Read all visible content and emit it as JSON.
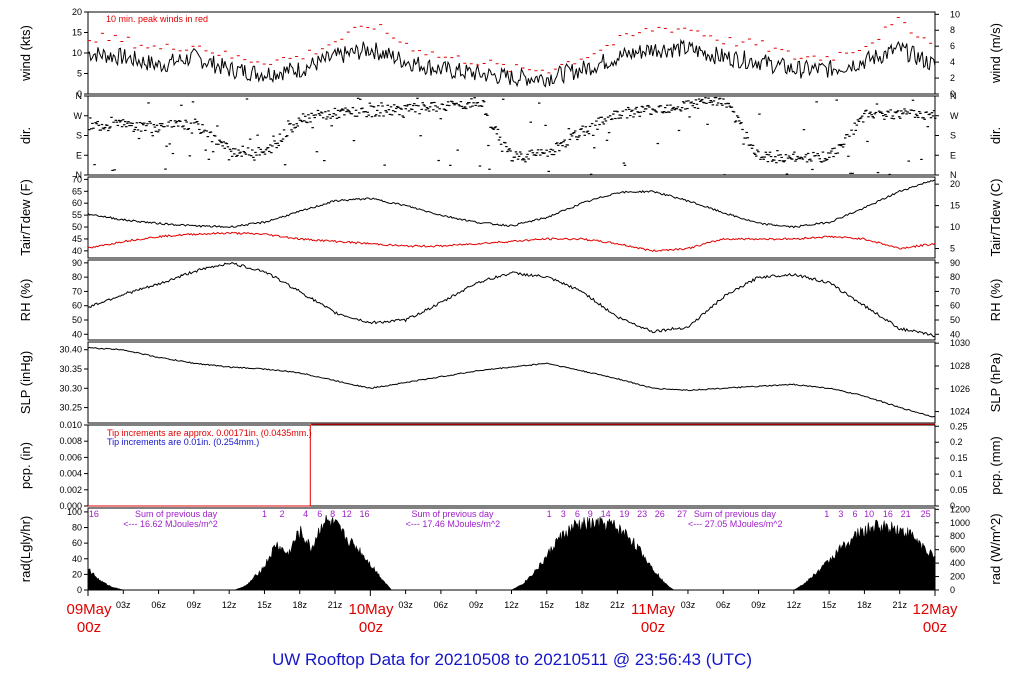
{
  "page_title": "UW Rooftop Data for 20210508  to  20210511 @ 23:56:43  (UTC)",
  "time_axis": {
    "range_hours": [
      0,
      72
    ],
    "day_labels": [
      {
        "date": "09May",
        "time": "00z",
        "hour": 0
      },
      {
        "date": "10May",
        "time": "00z",
        "hour": 24
      },
      {
        "date": "11May",
        "time": "00z",
        "hour": 48
      },
      {
        "date": "12May",
        "time": "00z",
        "hour": 72
      }
    ],
    "hour_ticks": [
      {
        "label": "03z",
        "hour": 3
      },
      {
        "label": "06z",
        "hour": 6
      },
      {
        "label": "09z",
        "hour": 9
      },
      {
        "label": "12z",
        "hour": 12
      },
      {
        "label": "15z",
        "hour": 15
      },
      {
        "label": "18z",
        "hour": 18
      },
      {
        "label": "21z",
        "hour": 21
      },
      {
        "label": "03z",
        "hour": 27
      },
      {
        "label": "06z",
        "hour": 30
      },
      {
        "label": "09z",
        "hour": 33
      },
      {
        "label": "12z",
        "hour": 36
      },
      {
        "label": "15z",
        "hour": 39
      },
      {
        "label": "18z",
        "hour": 42
      },
      {
        "label": "21z",
        "hour": 45
      },
      {
        "label": "03z",
        "hour": 51
      },
      {
        "label": "06z",
        "hour": 54
      },
      {
        "label": "09z",
        "hour": 57
      },
      {
        "label": "12z",
        "hour": 60
      },
      {
        "label": "15z",
        "hour": 63
      },
      {
        "label": "18z",
        "hour": 66
      },
      {
        "label": "21z",
        "hour": 69
      }
    ]
  },
  "chart_data": [
    {
      "type": "line",
      "id": "wind",
      "ylabel_left": "wind (kts)",
      "ylabel_right": "wind (m/s)",
      "ylim": [
        0,
        20
      ],
      "ylim_right": [
        0,
        10.29
      ],
      "yticks_left": [
        0,
        5,
        10,
        15,
        20
      ],
      "yticks_right": [
        0,
        2,
        4,
        6,
        8,
        10
      ],
      "annotation": "10 min. peak winds in red",
      "x": [
        0,
        3,
        6,
        9,
        12,
        15,
        18,
        21,
        24,
        27,
        30,
        33,
        36,
        39,
        42,
        45,
        48,
        51,
        54,
        57,
        60,
        63,
        66,
        69,
        72
      ],
      "series": [
        {
          "values": [
            10,
            9,
            7,
            9,
            6,
            5,
            6,
            9,
            11,
            8,
            6,
            5,
            4,
            4,
            6,
            9,
            11,
            11,
            9,
            8,
            6,
            6,
            8,
            11,
            7
          ],
          "color": "#000000"
        },
        {
          "values": [
            14,
            13,
            11,
            12,
            9,
            8,
            9,
            13,
            17,
            12,
            9,
            8,
            6,
            6,
            9,
            13,
            16,
            16,
            13,
            12,
            9,
            9,
            12,
            18,
            11
          ],
          "color": "#e00000",
          "style": "dashed"
        }
      ]
    },
    {
      "type": "scatter",
      "id": "dir",
      "ylabel_left": "dir.",
      "ylabel_right": "dir.",
      "ylim": [
        0,
        360
      ],
      "yticks_left": [
        {
          "value": 0,
          "label": "N"
        },
        {
          "value": 90,
          "label": "E"
        },
        {
          "value": 180,
          "label": "S"
        },
        {
          "value": 270,
          "label": "W"
        },
        {
          "value": 360,
          "label": "N"
        }
      ],
      "yticks_right": [
        {
          "value": 0,
          "label": "N"
        },
        {
          "value": 90,
          "label": "E"
        },
        {
          "value": 180,
          "label": "S"
        },
        {
          "value": 270,
          "label": "W"
        },
        {
          "value": 360,
          "label": "N"
        }
      ],
      "x": [
        0,
        3,
        6,
        9,
        12,
        15,
        18,
        21,
        24,
        27,
        30,
        33,
        36,
        39,
        42,
        45,
        48,
        51,
        54,
        57,
        60,
        63,
        66,
        69,
        72
      ],
      "series": [
        {
          "values": [
            230,
            225,
            220,
            230,
            110,
            100,
            260,
            280,
            290,
            300,
            310,
            330,
            80,
            100,
            200,
            280,
            300,
            320,
            340,
            80,
            80,
            85,
            270,
            280,
            275
          ],
          "color": "#000000"
        }
      ]
    },
    {
      "type": "line",
      "id": "temp",
      "ylabel_left": "Tair/Tdew (F)",
      "ylabel_right": "Tair/Tdew (C)",
      "ylim": [
        37,
        71
      ],
      "ylim_right": [
        2.78,
        21.67
      ],
      "yticks_left": [
        40,
        45,
        50,
        55,
        60,
        65,
        70
      ],
      "yticks_right": [
        5,
        10,
        15,
        20
      ],
      "x": [
        0,
        3,
        6,
        9,
        12,
        15,
        18,
        21,
        24,
        27,
        30,
        33,
        36,
        39,
        42,
        45,
        48,
        51,
        54,
        57,
        60,
        63,
        66,
        69,
        72
      ],
      "series": [
        {
          "values": [
            55.5,
            53,
            51.5,
            50.5,
            50,
            52,
            56.5,
            61,
            62,
            59,
            55,
            52,
            50.5,
            54,
            60,
            64.5,
            65,
            61,
            56,
            51.5,
            50,
            52,
            58,
            65,
            70
          ],
          "color": "#000000"
        },
        {
          "values": [
            41,
            44,
            46,
            47,
            47.5,
            47,
            45,
            44,
            43,
            42,
            42,
            43,
            44,
            45,
            45,
            43,
            40,
            41,
            45,
            45,
            45,
            46,
            45,
            41,
            43
          ],
          "color": "#e00000"
        }
      ]
    },
    {
      "type": "line",
      "id": "rh",
      "ylabel_left": "RH (%)",
      "ylabel_right": "RH (%)",
      "ylim": [
        36,
        92
      ],
      "ylim_right": [
        36,
        92
      ],
      "yticks_left": [
        40,
        50,
        60,
        70,
        80,
        90
      ],
      "yticks_right": [
        40,
        50,
        60,
        70,
        80,
        90
      ],
      "x": [
        0,
        3,
        6,
        9,
        12,
        15,
        18,
        21,
        24,
        27,
        30,
        33,
        36,
        39,
        42,
        45,
        48,
        51,
        54,
        57,
        60,
        63,
        66,
        69,
        72
      ],
      "series": [
        {
          "values": [
            59,
            68,
            75,
            84,
            90,
            84,
            70,
            55,
            48,
            50,
            62,
            76,
            83,
            80,
            70,
            52,
            42,
            45,
            66,
            80,
            82,
            76,
            60,
            44,
            39
          ],
          "color": "#000000"
        }
      ]
    },
    {
      "type": "line",
      "id": "slp",
      "ylabel_left": "SLP (inHg)",
      "ylabel_right": "SLP (hPa)",
      "ylim": [
        30.21,
        30.42
      ],
      "ylim_right": [
        1023.0,
        1030.1
      ],
      "yticks_left": [
        30.25,
        30.3,
        30.35,
        30.4
      ],
      "yticks_right": [
        1024,
        1026,
        1028,
        1030
      ],
      "ytick_labels_left": [
        "30.25",
        "30.30",
        "30.35",
        "30.40"
      ],
      "x": [
        0,
        3,
        6,
        9,
        12,
        15,
        18,
        21,
        24,
        27,
        30,
        33,
        36,
        39,
        42,
        45,
        48,
        51,
        54,
        57,
        60,
        63,
        66,
        69,
        72
      ],
      "series": [
        {
          "values": [
            30.405,
            30.4,
            30.38,
            30.365,
            30.355,
            30.35,
            30.34,
            30.32,
            30.3,
            30.315,
            30.33,
            30.345,
            30.355,
            30.365,
            30.345,
            30.325,
            30.3,
            30.295,
            30.3,
            30.305,
            30.31,
            30.3,
            30.28,
            30.25,
            30.225
          ],
          "color": "#000000"
        }
      ]
    },
    {
      "type": "line",
      "id": "pcp",
      "ylabel_left": "pcp. (in)",
      "ylabel_right": "pcp. (mm)",
      "ylim": [
        0,
        0.01
      ],
      "ylim_right": [
        0,
        0.254
      ],
      "yticks_left": [
        0,
        0.002,
        0.004,
        0.006,
        0.008,
        0.01
      ],
      "yticks_right": [
        0,
        0.05,
        0.1,
        0.15,
        0.2,
        0.25
      ],
      "ytick_labels_left": [
        "0.000",
        "0.002",
        "0.004",
        "0.006",
        "0.008",
        "0.010"
      ],
      "ytick_labels_right": [
        "0",
        "0.05",
        "0.1",
        "0.15",
        "0.2",
        "0.25"
      ],
      "annotations": [
        "Tip increments are approx. 0.00171in. (0.0435mm.)",
        "Tip increments are 0.01in. (0.254mm.)"
      ],
      "x": [
        0,
        18.9,
        18.9,
        19.0,
        19.0,
        72
      ],
      "series": [
        {
          "values": [
            0,
            0,
            0.01,
            0.01,
            0.0101,
            0.0101
          ],
          "color": "#e00000"
        }
      ]
    },
    {
      "type": "area",
      "id": "rad",
      "ylabel_left": "rad(Lgly/hr)",
      "ylabel_right": "rad (W/m^2)",
      "ylim": [
        0,
        105
      ],
      "ylim_right": [
        0,
        1220
      ],
      "yticks_left": [
        0,
        20,
        40,
        60,
        80,
        100
      ],
      "yticks_right": [
        0,
        200,
        400,
        600,
        800,
        1000,
        1200
      ],
      "annotations": [
        {
          "text": "Sum of previous day",
          "hour": 4
        },
        {
          "text": "<--- 16.62 MJoules/m^2",
          "hour": 3
        },
        {
          "text": "Sum of previous day",
          "hour": 27.5
        },
        {
          "text": "<--- 17.46 MJoules/m^2",
          "hour": 27
        },
        {
          "text": "Sum of previous day",
          "hour": 51.5
        },
        {
          "text": "<--- 27.05 MJoules/m^2",
          "hour": 51
        }
      ],
      "uv_top_labels": [
        {
          "text": "16",
          "hour": 0.5
        },
        {
          "text": "1",
          "hour": 15
        },
        {
          "text": "2",
          "hour": 16.5
        },
        {
          "text": "4",
          "hour": 18.5
        },
        {
          "text": "6",
          "hour": 19.7
        },
        {
          "text": "8",
          "hour": 20.8
        },
        {
          "text": "12",
          "hour": 22
        },
        {
          "text": "16",
          "hour": 23.5
        },
        {
          "text": "1",
          "hour": 39.2
        },
        {
          "text": "3",
          "hour": 40.4
        },
        {
          "text": "6",
          "hour": 41.6
        },
        {
          "text": "9",
          "hour": 42.7
        },
        {
          "text": "14",
          "hour": 44
        },
        {
          "text": "19",
          "hour": 45.6
        },
        {
          "text": "23",
          "hour": 47.1
        },
        {
          "text": "26",
          "hour": 48.6
        },
        {
          "text": "27",
          "hour": 50.5
        },
        {
          "text": "1",
          "hour": 62.8
        },
        {
          "text": "3",
          "hour": 64
        },
        {
          "text": "6",
          "hour": 65.2
        },
        {
          "text": "10",
          "hour": 66.4
        },
        {
          "text": "16",
          "hour": 68
        },
        {
          "text": "21",
          "hour": 69.5
        },
        {
          "text": "25",
          "hour": 71.2
        }
      ],
      "x": [
        0,
        1,
        2,
        3,
        12.5,
        13.5,
        15,
        16,
        17,
        18,
        19,
        20,
        21,
        22,
        23,
        24,
        25,
        25.8,
        36,
        37,
        38.5,
        40,
        41.5,
        43,
        44.5,
        46,
        47,
        48,
        49,
        49.8,
        60,
        61,
        62.5,
        64,
        65.5,
        67,
        68.5,
        70,
        71,
        72
      ],
      "series": [
        {
          "values": [
            27,
            12,
            4,
            0,
            0,
            6,
            30,
            58,
            45,
            75,
            52,
            88,
            83,
            65,
            52,
            33,
            14,
            0,
            0,
            8,
            32,
            65,
            82,
            84,
            83,
            68,
            48,
            28,
            9,
            0,
            0,
            9,
            30,
            53,
            72,
            81,
            80,
            70,
            55,
            40
          ],
          "color": "#000000"
        }
      ]
    }
  ]
}
